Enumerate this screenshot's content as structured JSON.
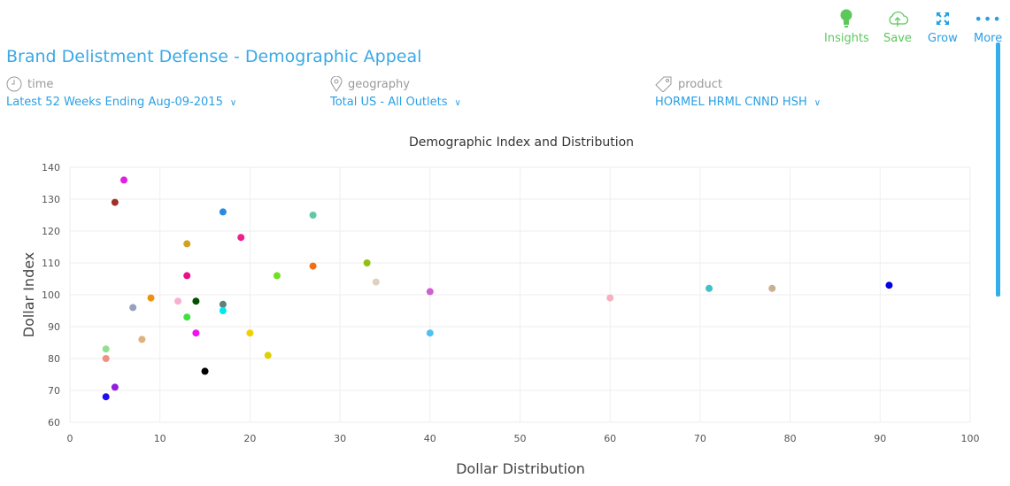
{
  "toolbar": {
    "insights": "Insights",
    "save": "Save",
    "grow": "Grow",
    "more": "More"
  },
  "title": "Brand Delistment Defense - Demographic Appeal",
  "filters": {
    "time": {
      "label": "time",
      "value": "Latest 52 Weeks Ending Aug-09-2015"
    },
    "geography": {
      "label": "geography",
      "value": "Total US - All Outlets"
    },
    "product": {
      "label": "product",
      "value": "HORMEL HRML CNND HSH"
    }
  },
  "colors": {
    "accent": "#2a9fe3",
    "green": "#5cc85c"
  },
  "chart_data": {
    "type": "scatter",
    "title": "Demographic Index and Distribution",
    "xlabel": "Dollar Distribution",
    "ylabel": "Dollar Index",
    "xlim": [
      0,
      100
    ],
    "ylim": [
      60,
      140
    ],
    "xticks": [
      0,
      10,
      20,
      30,
      40,
      50,
      60,
      70,
      80,
      90,
      100
    ],
    "yticks": [
      60,
      70,
      80,
      90,
      100,
      110,
      120,
      130,
      140
    ],
    "grid": true,
    "points": [
      {
        "x": 6,
        "y": 136,
        "color": "#e020e0"
      },
      {
        "x": 5,
        "y": 129,
        "color": "#a0302a"
      },
      {
        "x": 17,
        "y": 126,
        "color": "#2a8ae0"
      },
      {
        "x": 27,
        "y": 125,
        "color": "#60c8a8"
      },
      {
        "x": 13,
        "y": 116,
        "color": "#d4a020"
      },
      {
        "x": 19,
        "y": 118,
        "color": "#f0208a"
      },
      {
        "x": 33,
        "y": 110,
        "color": "#90c010"
      },
      {
        "x": 27,
        "y": 109,
        "color": "#f07010"
      },
      {
        "x": 13,
        "y": 106,
        "color": "#e8108a"
      },
      {
        "x": 23,
        "y": 106,
        "color": "#70e020"
      },
      {
        "x": 34,
        "y": 104,
        "color": "#e0d0c0"
      },
      {
        "x": 40,
        "y": 101,
        "color": "#d060d0"
      },
      {
        "x": 9,
        "y": 99,
        "color": "#f09010"
      },
      {
        "x": 12,
        "y": 98,
        "color": "#f8b0d0"
      },
      {
        "x": 14,
        "y": 98,
        "color": "#005000"
      },
      {
        "x": 7,
        "y": 96,
        "color": "#98a0c0"
      },
      {
        "x": 17,
        "y": 97,
        "color": "#608080"
      },
      {
        "x": 17,
        "y": 95,
        "color": "#00e8f0"
      },
      {
        "x": 13,
        "y": 93,
        "color": "#40e040"
      },
      {
        "x": 60,
        "y": 99,
        "color": "#f8b0c0"
      },
      {
        "x": 71,
        "y": 102,
        "color": "#40c0c8"
      },
      {
        "x": 78,
        "y": 102,
        "color": "#c8b090"
      },
      {
        "x": 91,
        "y": 103,
        "color": "#0000e0"
      },
      {
        "x": 14,
        "y": 88,
        "color": "#f010f0"
      },
      {
        "x": 20,
        "y": 88,
        "color": "#f0d000"
      },
      {
        "x": 40,
        "y": 88,
        "color": "#50c0f0"
      },
      {
        "x": 8,
        "y": 86,
        "color": "#e0b080"
      },
      {
        "x": 4,
        "y": 83,
        "color": "#90e090"
      },
      {
        "x": 4,
        "y": 80,
        "color": "#f09080"
      },
      {
        "x": 22,
        "y": 81,
        "color": "#e0d000"
      },
      {
        "x": 15,
        "y": 76,
        "color": "#000000"
      },
      {
        "x": 5,
        "y": 71,
        "color": "#9020e0"
      },
      {
        "x": 4,
        "y": 68,
        "color": "#2010f0"
      }
    ]
  }
}
